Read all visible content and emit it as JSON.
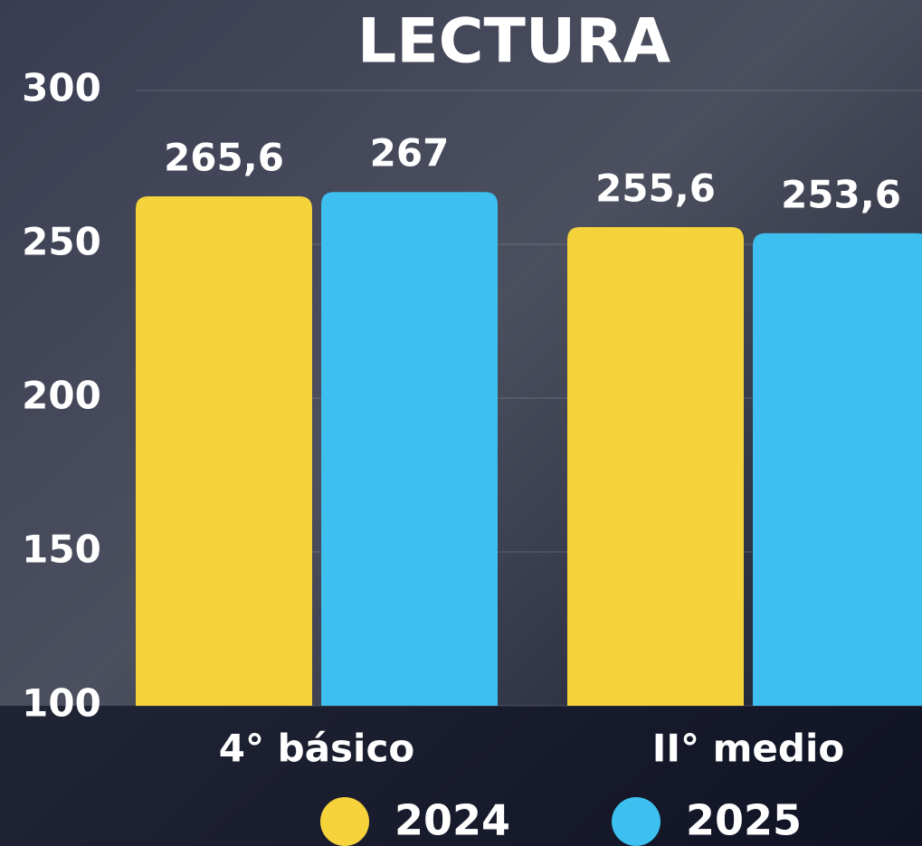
{
  "chart_data": {
    "type": "bar",
    "title": "LECTURA",
    "categories": [
      "4° básico",
      "II° medio"
    ],
    "series": [
      {
        "name": "2024",
        "color": "#f7d33b",
        "values": [
          265.6,
          255.6
        ],
        "value_labels": [
          "265,6",
          "255,6"
        ]
      },
      {
        "name": "2025",
        "color": "#3dbff0",
        "values": [
          267,
          253.6
        ],
        "value_labels": [
          "267",
          "253,6"
        ]
      }
    ],
    "ylim": [
      100,
      300
    ],
    "yticks": [
      100,
      150,
      200,
      250,
      300
    ],
    "grid": true
  }
}
